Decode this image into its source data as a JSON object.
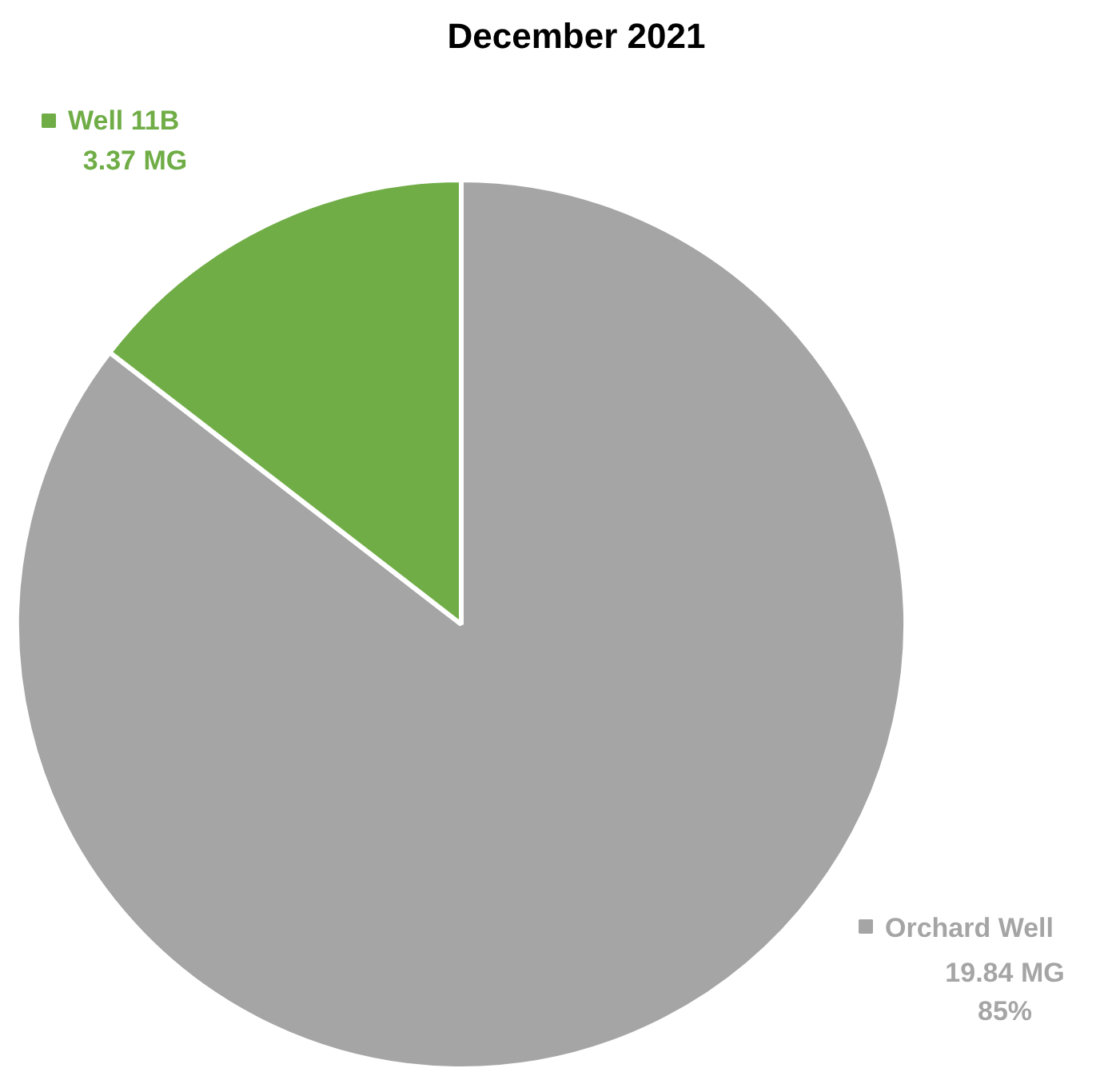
{
  "chart_data": {
    "type": "pie",
    "title": "December 2021",
    "categories": [
      "Orchard Well",
      "Well 11B"
    ],
    "values": [
      19.84,
      3.37
    ],
    "colors": [
      "#a5a5a5",
      "#70ad47"
    ],
    "value_labels": [
      "19.84 MG\n85%",
      "3.37 MG"
    ],
    "legend": "top right"
  }
}
